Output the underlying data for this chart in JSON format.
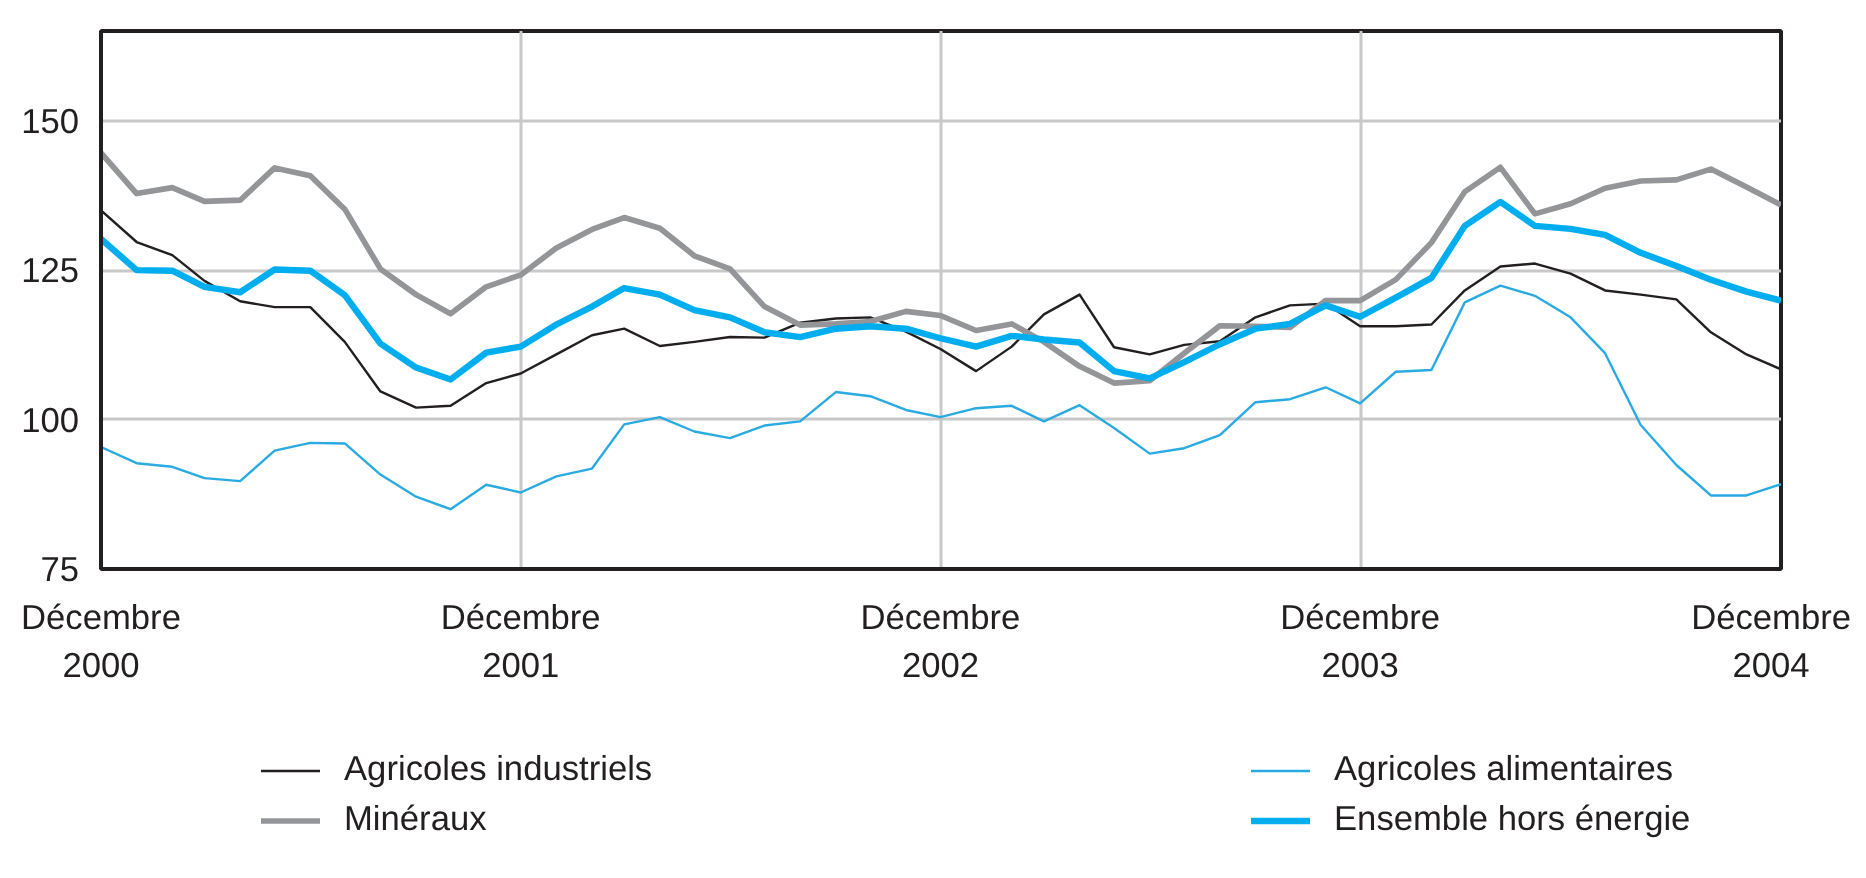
{
  "chart_data": {
    "type": "line",
    "x": [
      "2000-12",
      "2001-01",
      "2001-02",
      "2001-03",
      "2001-04",
      "2001-05",
      "2001-06",
      "2001-07",
      "2001-08",
      "2001-09",
      "2001-10",
      "2001-11",
      "2001-12",
      "2002-01",
      "2002-02",
      "2002-03",
      "2002-04",
      "2002-05",
      "2002-06",
      "2002-07",
      "2002-08",
      "2002-09",
      "2002-10",
      "2002-11",
      "2002-12",
      "2003-01",
      "2003-02",
      "2003-03",
      "2003-04",
      "2003-05",
      "2003-06",
      "2003-07",
      "2003-08",
      "2003-09",
      "2003-10",
      "2003-11",
      "2003-12",
      "2004-01",
      "2004-02",
      "2004-03",
      "2004-04",
      "2004-05",
      "2004-06",
      "2004-07",
      "2004-08",
      "2004-09",
      "2004-10",
      "2004-11",
      "2004-12"
    ],
    "xlim": [
      "2000-12",
      "2004-12"
    ],
    "xticks": [
      {
        "value": "2000-12",
        "label": "Décembre\n2000"
      },
      {
        "value": "2001-12",
        "label": "Décembre\n2001"
      },
      {
        "value": "2002-12",
        "label": "Décembre\n2002"
      },
      {
        "value": "2003-12",
        "label": "Décembre\n2003"
      },
      {
        "value": "2004-12",
        "label": "Décembre\n2004"
      }
    ],
    "ylim": [
      75,
      165
    ],
    "yticks": [
      75,
      100,
      125,
      150
    ],
    "grid": true,
    "legend": "bottom",
    "series": [
      {
        "name": "Agricoles industriels",
        "color": "#231f20",
        "values": [
          135.0,
          129.7,
          127.5,
          123.2,
          119.8,
          118.8,
          118.8,
          113.0,
          104.7,
          102.0,
          102.3,
          106.1,
          107.7,
          110.9,
          114.1,
          115.2,
          112.3,
          113.0,
          113.8,
          113.7,
          116.2,
          116.9,
          117.1,
          114.7,
          111.8,
          108.1,
          112.2,
          117.6,
          120.9,
          112.1,
          110.9,
          112.5,
          113.1,
          117.1,
          119.1,
          119.4,
          115.6,
          115.6,
          115.9,
          121.6,
          125.6,
          126.1,
          124.4,
          121.6,
          120.9,
          120.1,
          114.6,
          110.9,
          108.4
        ]
      },
      {
        "name": "Minéraux",
        "color": "#939598",
        "values": [
          144.6,
          137.8,
          138.8,
          136.5,
          136.7,
          142.1,
          140.8,
          135.2,
          125.2,
          120.9,
          117.7,
          122.2,
          124.2,
          128.7,
          131.8,
          133.8,
          132.0,
          127.4,
          125.2,
          118.9,
          115.8,
          116.0,
          116.4,
          118.1,
          117.4,
          114.9,
          116.0,
          113.0,
          108.9,
          106.1,
          106.5,
          111.1,
          115.7,
          115.6,
          115.4,
          119.9,
          119.9,
          123.4,
          129.6,
          138.1,
          142.2,
          134.4,
          136.1,
          138.7,
          139.9,
          140.1,
          141.9,
          138.9,
          135.9
        ]
      },
      {
        "name": "Agricoles alimentaires",
        "color": "#29abe2",
        "values": [
          95.4,
          92.7,
          92.1,
          90.2,
          89.7,
          94.8,
          96.1,
          96.0,
          90.8,
          87.1,
          85.0,
          89.1,
          87.8,
          90.5,
          91.8,
          99.2,
          100.4,
          98.0,
          96.9,
          99.0,
          99.7,
          104.6,
          103.9,
          101.6,
          100.4,
          101.9,
          102.3,
          99.7,
          102.4,
          98.6,
          94.3,
          95.2,
          97.4,
          102.9,
          103.4,
          105.4,
          102.7,
          108.0,
          108.3,
          119.6,
          122.4,
          120.7,
          117.1,
          111.1,
          99.1,
          92.4,
          87.3,
          87.3,
          89.2
        ]
      },
      {
        "name": "Ensemble hors énergie",
        "color": "#00aeef",
        "values": [
          130.2,
          125.0,
          124.9,
          122.2,
          121.3,
          125.1,
          124.9,
          120.8,
          112.7,
          108.7,
          106.7,
          111.2,
          112.2,
          115.9,
          118.9,
          122.0,
          120.9,
          118.3,
          117.1,
          114.6,
          113.8,
          115.2,
          115.6,
          115.2,
          113.6,
          112.2,
          114.0,
          113.4,
          112.9,
          108.1,
          106.9,
          109.6,
          112.6,
          115.2,
          116.0,
          119.1,
          117.2,
          120.4,
          123.7,
          132.4,
          136.4,
          132.4,
          131.9,
          130.9,
          127.9,
          125.7,
          123.4,
          121.4,
          119.9
        ]
      }
    ]
  }
}
